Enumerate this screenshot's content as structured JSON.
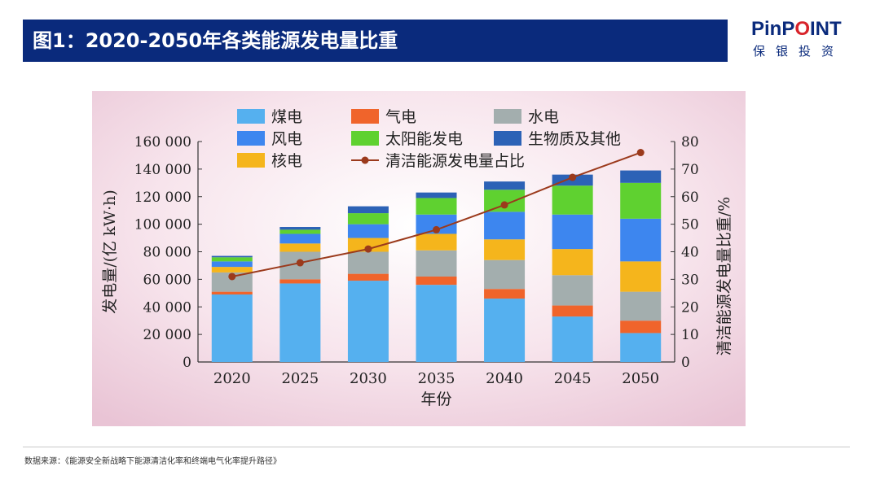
{
  "header": {
    "title": "图1：2020-2050年各类能源发电量比重"
  },
  "logo": {
    "brand_a": "PinP",
    "brand_b": "O",
    "brand_c": "INT",
    "subtitle": "保银投资"
  },
  "source": "数据来源：《能源安全新战略下能源清洁化率和终端电气化率提升路径》",
  "colors": {
    "coal": "#55b0ef",
    "gas": "#f0642b",
    "hydro": "#a3aeae",
    "wind": "#3d86ef",
    "solar": "#5fd130",
    "bio": "#2c62b6",
    "nuclear": "#f5b51c",
    "line": "#9b3a1c",
    "bg": "#f2d6e3",
    "title": "#0a2a7c"
  },
  "chart_data": {
    "type": "bar",
    "stacked": true,
    "categories": [
      "2020",
      "2025",
      "2030",
      "2035",
      "2040",
      "2045",
      "2050"
    ],
    "series": [
      {
        "name": "煤电",
        "key": "coal",
        "values": [
          49000,
          57000,
          59000,
          56000,
          46000,
          33000,
          21000
        ]
      },
      {
        "name": "气电",
        "key": "gas",
        "values": [
          2000,
          3000,
          5000,
          6000,
          7000,
          8000,
          9000
        ]
      },
      {
        "name": "水电",
        "key": "hydro",
        "values": [
          14000,
          20000,
          16000,
          19000,
          21000,
          22000,
          21000
        ]
      },
      {
        "name": "核电",
        "key": "nuclear",
        "values": [
          4000,
          6000,
          10000,
          12000,
          15000,
          19000,
          22000
        ]
      },
      {
        "name": "风电",
        "key": "wind",
        "values": [
          4000,
          7000,
          10000,
          14000,
          20000,
          25000,
          31000
        ]
      },
      {
        "name": "太阳能发电",
        "key": "solar",
        "values": [
          3000,
          3000,
          8000,
          12000,
          16000,
          21000,
          26000
        ]
      },
      {
        "name": "生物质及其他",
        "key": "bio",
        "values": [
          1000,
          2000,
          5000,
          4000,
          6000,
          8000,
          9000
        ]
      }
    ],
    "line": {
      "name": "清洁能源发电量占比",
      "values": [
        31,
        36,
        41,
        48,
        57,
        67,
        76
      ]
    },
    "legend_order": [
      [
        "煤电",
        "coal"
      ],
      [
        "气电",
        "gas"
      ],
      [
        "水电",
        "hydro"
      ],
      [
        "风电",
        "wind"
      ],
      [
        "太阳能发电",
        "solar"
      ],
      [
        "生物质及其他",
        "bio"
      ],
      [
        "核电",
        "nuclear"
      ],
      [
        "清洁能源发电量占比",
        "line"
      ]
    ],
    "xlabel": "年份",
    "ylabel": "发电量/(亿 kW·h)",
    "y2label": "清洁能源发电量比重/%",
    "ylim": [
      0,
      160000
    ],
    "y2lim": [
      0,
      80
    ],
    "yticks": [
      "0",
      "20 000",
      "40 000",
      "60 000",
      "80 000",
      "100 000",
      "120 000",
      "140 000",
      "160 000"
    ],
    "y2ticks": [
      "0",
      "10",
      "20",
      "30",
      "40",
      "50",
      "60",
      "70",
      "80"
    ]
  }
}
